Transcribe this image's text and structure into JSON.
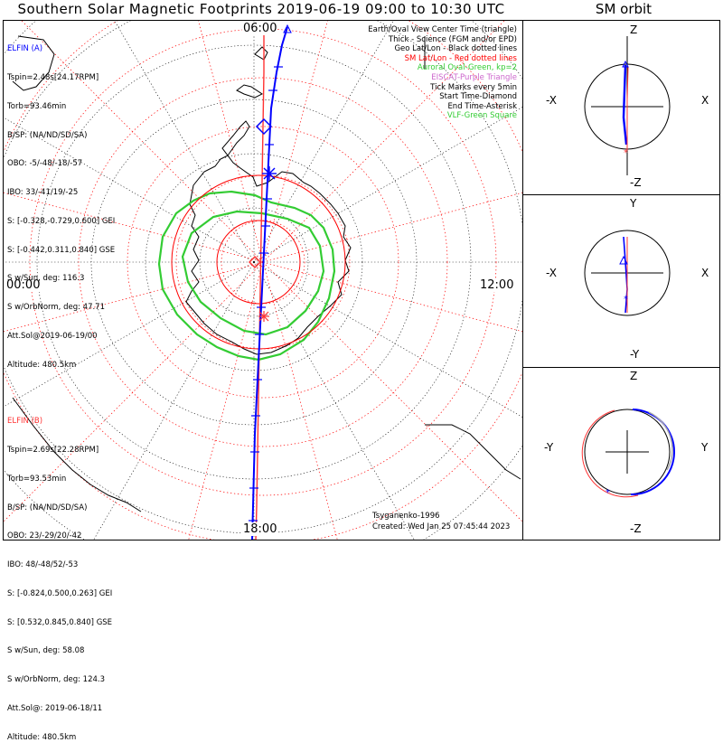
{
  "title": "Southern Solar Magnetic Footprints 2019-06-19 09:00 to 10:30 UTC",
  "orbit_title": "SM orbit",
  "colors": {
    "elfin_a": "#0000ff",
    "elfin_b": "#ff3333",
    "aurora": "#33cc33",
    "geo_grid": "#000000",
    "sm_grid": "#ff0000",
    "eiscat": "#cc66cc"
  },
  "hour_labels": {
    "top": "06:00",
    "left": "00:00",
    "right": "12:00",
    "bottom": "18:00"
  },
  "elfin_a": {
    "name": "ELFIN (A)",
    "lines": [
      "Tspin=2.48s[24.17RPM]",
      "Torb=93.46min",
      "B/SP: (NA/ND/SD/SA)",
      "OBO: -5/-48/-18/-57",
      "IBO: 33/-41/19/-25",
      "S: [-0.328,-0.729,0.600] GEI",
      "S: [-0.442,0.311,0.840] GSE",
      "S w/Sun, deg: 116.3",
      "S w/OrbNorm, deg: 47.71",
      "Att.Sol@2019-06-19/00",
      "Altitude: 480.5km"
    ]
  },
  "elfin_b": {
    "name": "ELFIN (B)",
    "lines": [
      "Tspin=2.69s[22.28RPM]",
      "Torb=93.53min",
      "B/SP: (NA/ND/SD/SA)",
      "OBO: 23/-29/20/-42",
      "IBO: 48/-48/52/-53",
      "S: [-0.824,0.500,0.263] GEI",
      "S: [0.532,0.845,0.840] GSE",
      "S w/Sun, deg: 58.08",
      "S w/OrbNorm, deg: 124.3",
      "Att.Sol@: 2019-06-18/11",
      "Altitude: 480.5km"
    ]
  },
  "legend": [
    {
      "text": "Earth/Oval View Center Time (triangle)",
      "color": "#000000"
    },
    {
      "text": "Thick - Science (FGM and/or EPD)",
      "color": "#000000"
    },
    {
      "text": "Geo Lat/Lon - Black dotted lines",
      "color": "#000000"
    },
    {
      "text": "SM Lat/Lon - Red dotted lines",
      "color": "#ff0000"
    },
    {
      "text": "Auroral Oval-Green, kp=2",
      "color": "#33cc33"
    },
    {
      "text": "EISCAT-Purple Triangle",
      "color": "#cc66cc"
    },
    {
      "text": "Tick Marks every 5min",
      "color": "#000000"
    },
    {
      "text": "Start Time-Diamond",
      "color": "#000000"
    },
    {
      "text": "End Time-Asterisk",
      "color": "#000000"
    },
    {
      "text": "VLF-Green Square",
      "color": "#33cc33"
    }
  ],
  "credits": {
    "model": "Tsyganenko-1996",
    "created": "Created: Wed Jan 25 07:45:44 2023"
  },
  "orbit_panels": [
    {
      "top": "Z",
      "bottom": "-Z",
      "left": "-X",
      "right": "X"
    },
    {
      "top": "Y",
      "bottom": "-Y",
      "left": "-X",
      "right": "X"
    },
    {
      "top": "Z",
      "bottom": "-Z",
      "left": "-Y",
      "right": "Y"
    }
  ],
  "chart_data": {
    "type": "polar-map",
    "projection": "southern hemisphere polar, SM magnetic local time",
    "mlt_labels": [
      "06:00",
      "00:00",
      "12:00",
      "18:00"
    ],
    "series": [
      {
        "name": "ELFIN (A)",
        "color": "#0000ff"
      },
      {
        "name": "ELFIN (B)",
        "color": "#ff3333"
      }
    ],
    "auroral_oval_kp": 2
  }
}
